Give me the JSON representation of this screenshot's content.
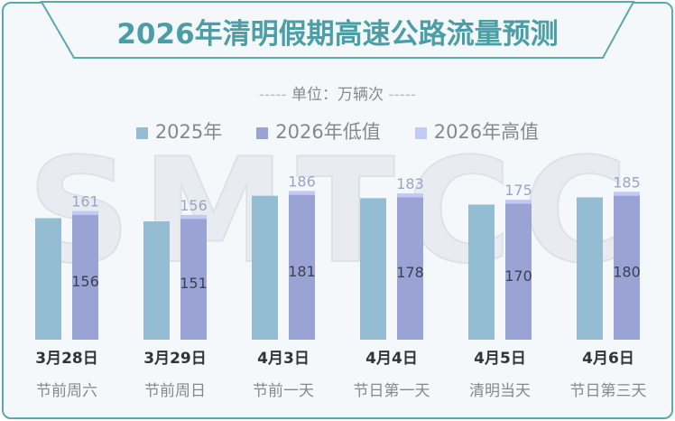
{
  "chart_data": {
    "type": "bar",
    "title": "2026年清明假期高速公路流量预测",
    "subtitle": "单位：万辆次",
    "categories": [
      "3月28日",
      "3月29日",
      "4月3日",
      "4月4日",
      "4月5日",
      "4月6日"
    ],
    "sub_categories": [
      "节前周六",
      "节前周日",
      "节前一天",
      "节日第一天",
      "清明当天",
      "节日第三天"
    ],
    "series": [
      {
        "name": "2025年",
        "values": [
          152,
          148,
          180,
          177,
          169,
          178
        ],
        "color": "#94bcd3"
      },
      {
        "name": "2026年低值",
        "values": [
          156,
          151,
          181,
          178,
          170,
          180
        ],
        "color": "#9aa4d4"
      },
      {
        "name": "2026年高值",
        "values": [
          161,
          156,
          186,
          183,
          175,
          185
        ],
        "color": "#c2c9f5"
      }
    ],
    "ylim": [
      0,
      200
    ],
    "legend": "top",
    "grid": false
  },
  "watermark": "SMTCC",
  "unit_dashes": "-----"
}
